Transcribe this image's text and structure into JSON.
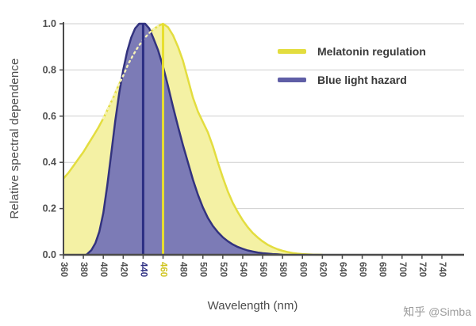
{
  "watermark": "知乎 @Simba",
  "chart_data": {
    "type": "area",
    "title": "",
    "xlabel": "Wavelength (nm)",
    "ylabel": "Relative spectral dependence",
    "xlim": [
      360,
      740
    ],
    "ylim": [
      0,
      1.0
    ],
    "x_ticks": [
      360,
      380,
      400,
      420,
      440,
      460,
      480,
      500,
      520,
      540,
      560,
      580,
      600,
      620,
      640,
      660,
      680,
      700,
      720,
      740
    ],
    "y_ticks": [
      0.0,
      0.2,
      0.4,
      0.6,
      0.8,
      1.0
    ],
    "grid": "horizontal",
    "legend_position": "top-right",
    "series": [
      {
        "id": "melatonin-regulation",
        "name": "Melatonin regulation",
        "legend_color": "#e3dd3f",
        "line_color": "#e3dd3f",
        "fill_color": "#f4f1a4",
        "points": [
          [
            360,
            0.33
          ],
          [
            365,
            0.355
          ],
          [
            370,
            0.385
          ],
          [
            375,
            0.415
          ],
          [
            380,
            0.445
          ],
          [
            385,
            0.48
          ],
          [
            390,
            0.515
          ],
          [
            395,
            0.55
          ],
          [
            400,
            0.59
          ],
          [
            405,
            0.635
          ],
          [
            410,
            0.68
          ],
          [
            415,
            0.73
          ],
          [
            420,
            0.775
          ],
          [
            425,
            0.825
          ],
          [
            430,
            0.865
          ],
          [
            435,
            0.9
          ],
          [
            440,
            0.93
          ],
          [
            445,
            0.955
          ],
          [
            450,
            0.975
          ],
          [
            455,
            0.99
          ],
          [
            460,
            1.0
          ],
          [
            465,
            0.985
          ],
          [
            470,
            0.95
          ],
          [
            475,
            0.9
          ],
          [
            480,
            0.84
          ],
          [
            485,
            0.76
          ],
          [
            490,
            0.68
          ],
          [
            495,
            0.62
          ],
          [
            500,
            0.575
          ],
          [
            505,
            0.53
          ],
          [
            510,
            0.47
          ],
          [
            515,
            0.4
          ],
          [
            520,
            0.335
          ],
          [
            525,
            0.275
          ],
          [
            530,
            0.225
          ],
          [
            535,
            0.185
          ],
          [
            540,
            0.15
          ],
          [
            545,
            0.12
          ],
          [
            550,
            0.095
          ],
          [
            555,
            0.075
          ],
          [
            560,
            0.058
          ],
          [
            565,
            0.044
          ],
          [
            570,
            0.033
          ],
          [
            575,
            0.024
          ],
          [
            580,
            0.017
          ],
          [
            585,
            0.012
          ],
          [
            590,
            0.008
          ],
          [
            595,
            0.005
          ],
          [
            600,
            0.003
          ],
          [
            610,
            0.001
          ],
          [
            620,
            0.0
          ]
        ]
      },
      {
        "id": "blue-light-hazard",
        "name": "Blue light hazard",
        "legend_color": "#5f5ea6",
        "line_color": "#33337f",
        "fill_color": "#7c7bb6",
        "points": [
          [
            383,
            0.0
          ],
          [
            388,
            0.02
          ],
          [
            392,
            0.05
          ],
          [
            396,
            0.1
          ],
          [
            400,
            0.18
          ],
          [
            404,
            0.3
          ],
          [
            408,
            0.44
          ],
          [
            412,
            0.58
          ],
          [
            416,
            0.7
          ],
          [
            420,
            0.8
          ],
          [
            424,
            0.88
          ],
          [
            428,
            0.94
          ],
          [
            432,
            0.98
          ],
          [
            436,
            1.0
          ],
          [
            442,
            1.0
          ],
          [
            446,
            0.98
          ],
          [
            450,
            0.94
          ],
          [
            455,
            0.885
          ],
          [
            460,
            0.815
          ],
          [
            465,
            0.73
          ],
          [
            470,
            0.64
          ],
          [
            475,
            0.555
          ],
          [
            480,
            0.475
          ],
          [
            485,
            0.4
          ],
          [
            490,
            0.325
          ],
          [
            495,
            0.26
          ],
          [
            500,
            0.205
          ],
          [
            505,
            0.16
          ],
          [
            510,
            0.125
          ],
          [
            515,
            0.098
          ],
          [
            520,
            0.076
          ],
          [
            525,
            0.059
          ],
          [
            530,
            0.045
          ],
          [
            535,
            0.034
          ],
          [
            540,
            0.026
          ],
          [
            545,
            0.019
          ],
          [
            550,
            0.014
          ],
          [
            555,
            0.01
          ],
          [
            560,
            0.007
          ],
          [
            565,
            0.005
          ],
          [
            570,
            0.003
          ],
          [
            575,
            0.002
          ],
          [
            580,
            0.0
          ]
        ]
      }
    ],
    "hidden_segment": {
      "series_index": 0,
      "x_from": 398,
      "x_to": 457,
      "color": "#f6f2b8"
    },
    "markers": [
      {
        "x": 440,
        "top": 1.0,
        "color": "#2c2e83",
        "label_color": "#2c2e83"
      },
      {
        "x": 460,
        "top": 1.0,
        "color": "#e7df2e",
        "label_color": "#cfc41f"
      }
    ]
  }
}
